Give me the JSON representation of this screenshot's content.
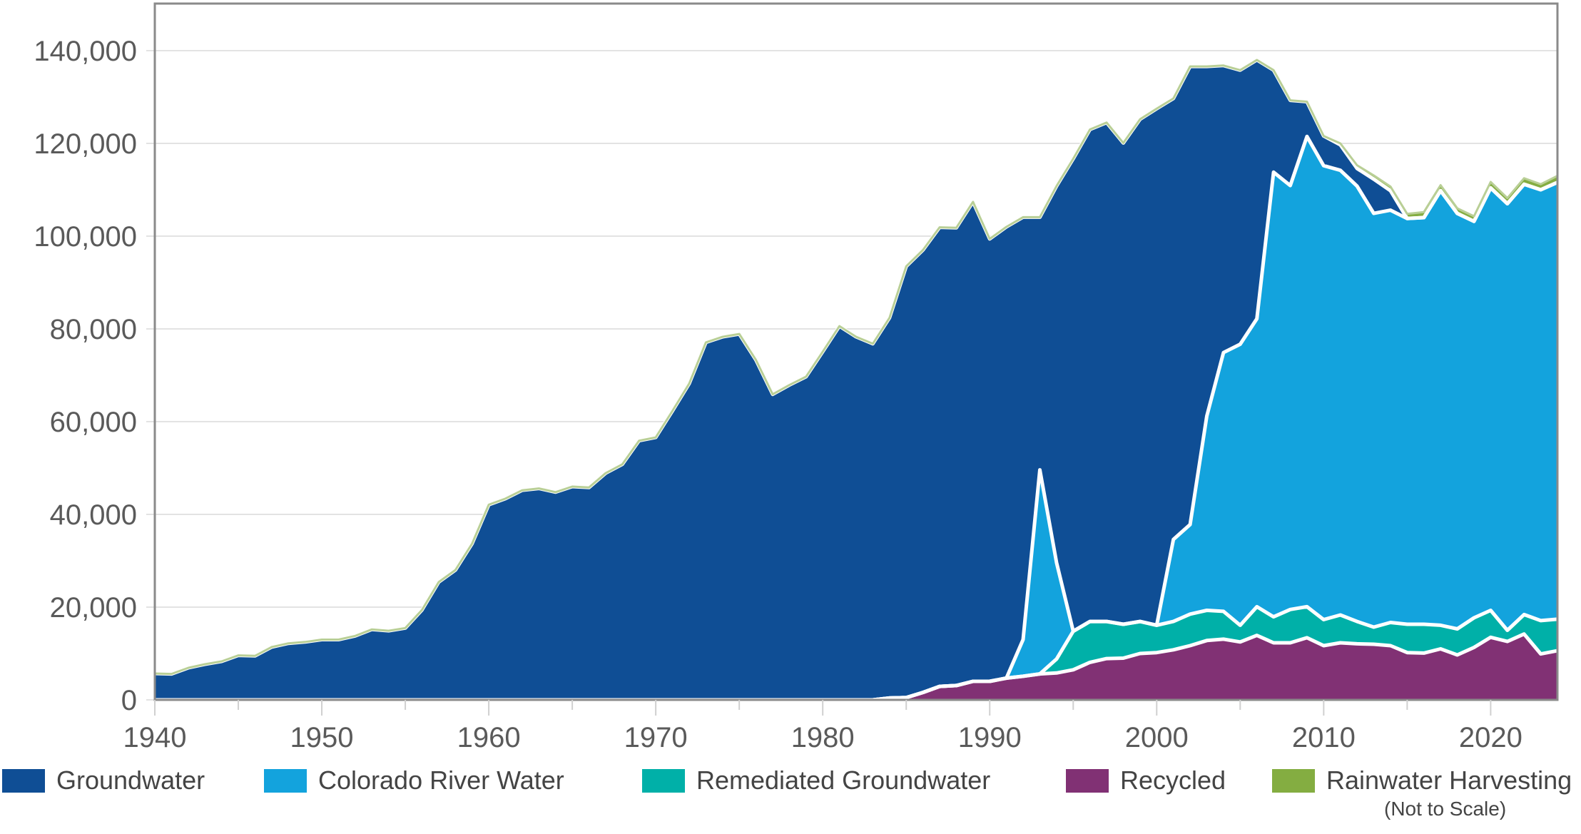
{
  "chart_data": {
    "type": "area",
    "stacked": true,
    "title": "",
    "xlabel": "",
    "ylabel": "",
    "xlim": [
      1940,
      2024
    ],
    "ylim": [
      0,
      150000
    ],
    "grid": true,
    "legend_position": "bottom",
    "y_ticks": [
      0,
      20000,
      40000,
      60000,
      80000,
      100000,
      120000,
      140000
    ],
    "y_tick_labels": [
      "0",
      "20,000",
      "40,000",
      "60,000",
      "80,000",
      "100,000",
      "120,000",
      "140,000"
    ],
    "x_ticks": [
      1940,
      1950,
      1960,
      1970,
      1980,
      1990,
      2000,
      2010,
      2020
    ],
    "x_tick_labels": [
      "1940",
      "1950",
      "1960",
      "1970",
      "1980",
      "1990",
      "2000",
      "2010",
      "2020"
    ],
    "x_start": 1940,
    "series": [
      {
        "name": "Recycled",
        "color": "#813174",
        "values": [
          0,
          0,
          0,
          0,
          0,
          0,
          0,
          0,
          0,
          0,
          0,
          0,
          0,
          0,
          0,
          0,
          0,
          0,
          0,
          0,
          0,
          0,
          0,
          0,
          0,
          0,
          0,
          0,
          0,
          0,
          0,
          0,
          0,
          0,
          0,
          0,
          0,
          0,
          0,
          0,
          0,
          0,
          0,
          0,
          400,
          500,
          1600,
          2900,
          3100,
          4000,
          4000,
          4700,
          5100,
          5600,
          5800,
          6500,
          8100,
          8900,
          9000,
          10000,
          10200,
          10800,
          11700,
          12800,
          13100,
          12500,
          13900,
          12300,
          12300,
          13400,
          11700,
          12300,
          12100,
          12000,
          11700,
          10200,
          10100,
          11000,
          9700,
          11300,
          13500,
          12600,
          14200,
          9900,
          10600
        ]
      },
      {
        "name": "Remediated Groundwater",
        "color": "#00B0A8",
        "values": [
          0,
          0,
          0,
          0,
          0,
          0,
          0,
          0,
          0,
          0,
          0,
          0,
          0,
          0,
          0,
          0,
          0,
          0,
          0,
          0,
          0,
          0,
          0,
          0,
          0,
          0,
          0,
          0,
          0,
          0,
          0,
          0,
          0,
          0,
          0,
          0,
          0,
          0,
          0,
          0,
          0,
          0,
          0,
          0,
          0,
          0,
          0,
          0,
          0,
          0,
          0,
          0,
          0,
          0,
          3000,
          8300,
          8800,
          8000,
          7300,
          6900,
          5900,
          6100,
          6800,
          6500,
          6000,
          3600,
          6200,
          5600,
          7200,
          6700,
          5600,
          6000,
          4800,
          3700,
          5000,
          6100,
          6200,
          5100,
          5600,
          6400,
          5800,
          2400,
          4200,
          7200,
          6800
        ]
      },
      {
        "name": "Colorado River Water",
        "color": "#13A3DD",
        "values": [
          0,
          0,
          0,
          0,
          0,
          0,
          0,
          0,
          0,
          0,
          0,
          0,
          0,
          0,
          0,
          0,
          0,
          0,
          0,
          0,
          0,
          0,
          0,
          0,
          0,
          0,
          0,
          0,
          0,
          0,
          0,
          0,
          0,
          0,
          0,
          0,
          0,
          0,
          0,
          0,
          0,
          0,
          0,
          0,
          0,
          0,
          0,
          0,
          0,
          0,
          0,
          0,
          7900,
          44000,
          20800,
          0,
          0,
          0,
          0,
          0,
          0,
          17700,
          19300,
          41900,
          55800,
          60600,
          62100,
          95900,
          91400,
          101400,
          97900,
          95900,
          93900,
          89200,
          88900,
          87500,
          87700,
          93700,
          89600,
          85500,
          91100,
          92000,
          92800,
          92900,
          94200
        ]
      },
      {
        "name": "Groundwater",
        "color": "#0F4E95",
        "values": [
          5700,
          5600,
          6900,
          7700,
          8300,
          9600,
          9500,
          11400,
          12200,
          12500,
          13000,
          13000,
          13800,
          15200,
          14900,
          15500,
          19400,
          25400,
          28000,
          33700,
          42100,
          43400,
          45200,
          45600,
          44800,
          46000,
          45800,
          48900,
          50800,
          55900,
          56600,
          62300,
          68200,
          77100,
          78300,
          78900,
          73300,
          65900,
          67900,
          69700,
          75100,
          80600,
          78300,
          76800,
          82000,
          93000,
          95400,
          99000,
          98700,
          103400,
          95400,
          97300,
          91100,
          54500,
          81200,
          101900,
          106100,
          107600,
          103800,
          108300,
          111400,
          95100,
          98800,
          75400,
          61900,
          59100,
          55800,
          22000,
          18400,
          7500,
          6400,
          5500,
          3800,
          7400,
          4200,
          0,
          0,
          0,
          0,
          0,
          0,
          0,
          0,
          0,
          0
        ]
      },
      {
        "name": "Rainwater Harvesting",
        "color": "#84AD41",
        "note": "(Not to Scale)",
        "values": [
          0,
          0,
          0,
          0,
          0,
          0,
          0,
          0,
          0,
          0,
          0,
          0,
          0,
          0,
          0,
          0,
          0,
          0,
          0,
          0,
          0,
          0,
          0,
          0,
          0,
          0,
          0,
          0,
          0,
          0,
          0,
          0,
          0,
          0,
          0,
          0,
          0,
          0,
          0,
          0,
          0,
          0,
          0,
          0,
          0,
          0,
          0,
          0,
          0,
          0,
          0,
          0,
          0,
          0,
          0,
          0,
          0,
          0,
          0,
          0,
          0,
          0,
          0,
          0,
          0,
          0,
          0,
          0,
          0,
          0,
          0,
          300,
          700,
          800,
          900,
          1000,
          1200,
          1200,
          1100,
          1100,
          1300,
          1200,
          1300,
          1200,
          1400
        ]
      }
    ]
  },
  "legend": {
    "items": [
      {
        "label": "Groundwater",
        "color": "#0F4E95"
      },
      {
        "label": "Colorado River Water",
        "color": "#13A3DD"
      },
      {
        "label": "Remediated Groundwater",
        "color": "#00B0A8"
      },
      {
        "label": "Recycled",
        "color": "#813174"
      },
      {
        "label": "Rainwater Harvesting",
        "color": "#84AD41"
      }
    ],
    "note": "(Not to Scale)"
  }
}
